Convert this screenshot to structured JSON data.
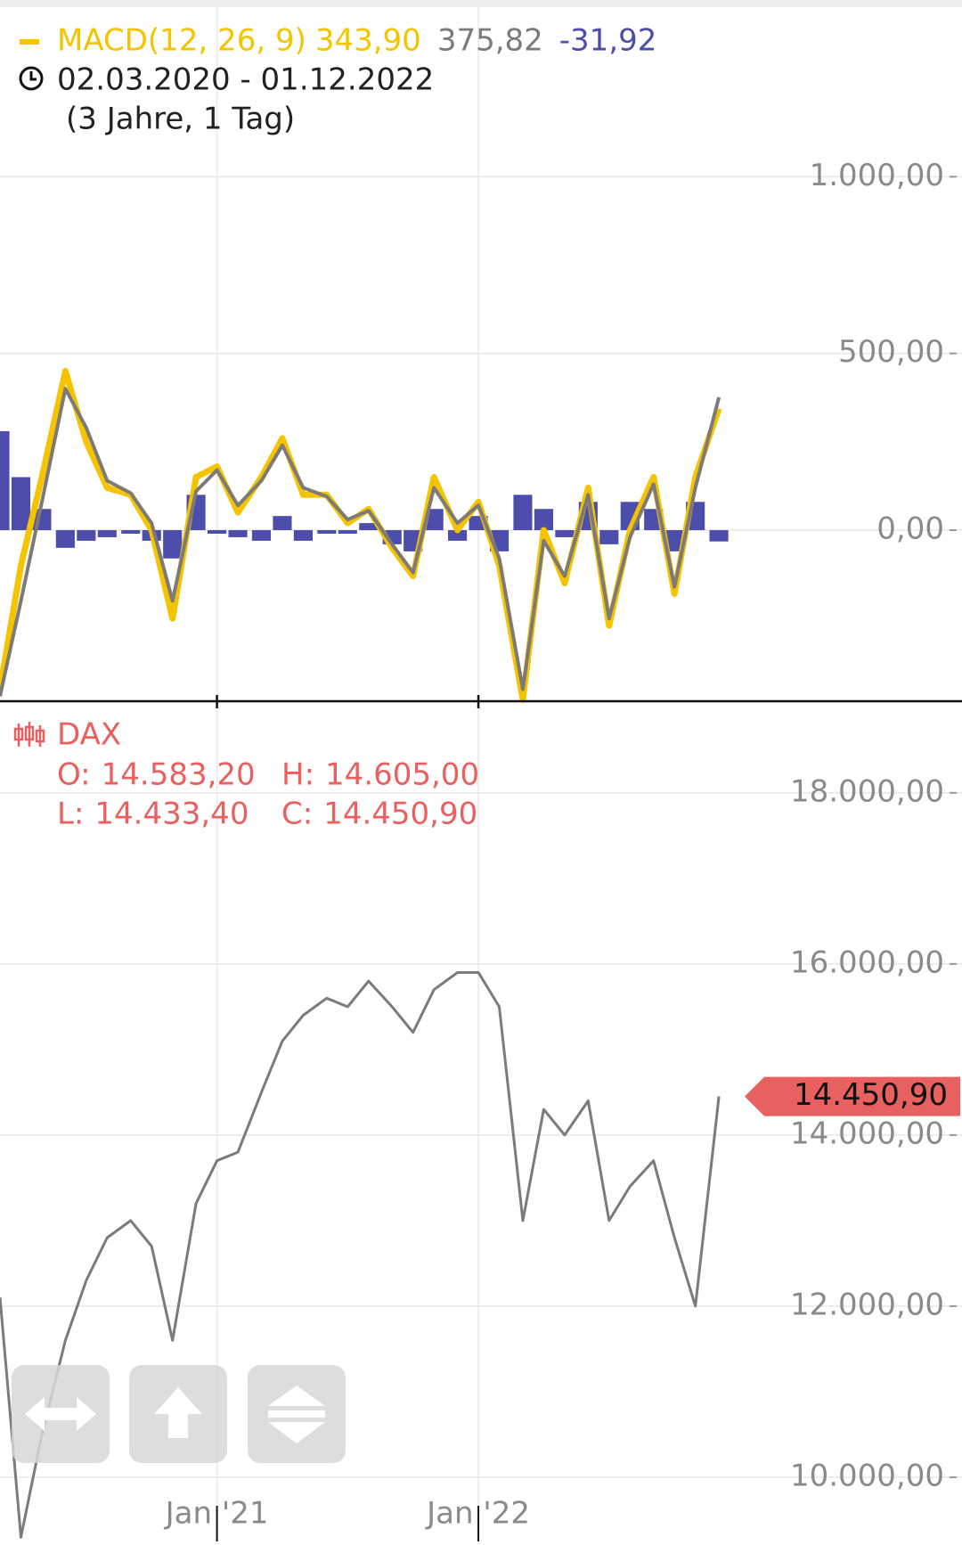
{
  "chart_data": [
    {
      "type": "macd",
      "legend_title": "MACD(12, 26, 9)",
      "date_range": "02.03.2020 - 01.12.2022",
      "period": "(3 Jahre, 1 Tag)",
      "x": [
        2020.17,
        2020.25,
        2020.33,
        2020.42,
        2020.5,
        2020.58,
        2020.67,
        2020.75,
        2020.83,
        2020.92,
        2021.0,
        2021.08,
        2021.17,
        2021.25,
        2021.33,
        2021.42,
        2021.5,
        2021.58,
        2021.67,
        2021.75,
        2021.83,
        2021.92,
        2022.0,
        2022.08,
        2022.17,
        2022.25,
        2022.33,
        2022.42,
        2022.5,
        2022.58,
        2022.67,
        2022.75,
        2022.83,
        2022.92
      ],
      "xlim": [
        2020.17,
        2023.85
      ],
      "ylim": [
        -484,
        1500
      ],
      "yticks": [
        {
          "value": 0,
          "label": "0,00"
        },
        {
          "value": 500,
          "label": "500,00"
        },
        {
          "value": 1000,
          "label": "1.000,00"
        }
      ],
      "grid": true,
      "series": [
        {
          "color": "#f5c400",
          "kind": "line",
          "readout": {
            "value": 343.9,
            "label": "343,90"
          },
          "values": [
            -450,
            -100,
            150,
            450,
            250,
            120,
            100,
            0,
            -250,
            150,
            180,
            50,
            150,
            260,
            100,
            100,
            20,
            60,
            -50,
            -130,
            150,
            0,
            80,
            -100,
            -480,
            0,
            -150,
            120,
            -270,
            0,
            150,
            -180,
            150,
            343.9
          ]
        },
        {
          "color": "#7d7a78",
          "kind": "line",
          "readout": {
            "value": 375.82,
            "label": "375,82"
          },
          "values": [
            -470,
            -200,
            80,
            400,
            290,
            140,
            105,
            20,
            -200,
            110,
            170,
            70,
            140,
            240,
            120,
            95,
            30,
            55,
            -40,
            -120,
            120,
            20,
            70,
            -80,
            -450,
            -30,
            -130,
            100,
            -250,
            -20,
            130,
            -160,
            120,
            375.82
          ]
        },
        {
          "color": "#4d4dab",
          "kind": "bar",
          "readout": {
            "value": -31.92,
            "label": "-31,92"
          },
          "values": [
            280,
            150,
            60,
            -50,
            -30,
            -20,
            -10,
            -30,
            -80,
            100,
            -10,
            -20,
            -30,
            40,
            -30,
            -10,
            -10,
            20,
            -40,
            -60,
            60,
            -30,
            40,
            -60,
            100,
            60,
            -20,
            80,
            -40,
            80,
            60,
            -60,
            80,
            -31.92
          ]
        }
      ]
    },
    {
      "type": "line",
      "name": "DAX",
      "color": "#e86060",
      "ohlc": [
        {
          "key": "O:",
          "value": 14583.2,
          "label": "14.583,20"
        },
        {
          "key": "H:",
          "value": 14605.0,
          "label": "14.605,00"
        },
        {
          "key": "L:",
          "value": 14433.4,
          "label": "14.433,40"
        },
        {
          "key": "C:",
          "value": 14450.9,
          "label": "14.450,90"
        }
      ],
      "last_price": {
        "value": 14450.9,
        "label": "14.450,90"
      },
      "x": [
        2020.17,
        2020.25,
        2020.33,
        2020.42,
        2020.5,
        2020.58,
        2020.67,
        2020.75,
        2020.83,
        2020.92,
        2021.0,
        2021.08,
        2021.17,
        2021.25,
        2021.33,
        2021.42,
        2021.5,
        2021.58,
        2021.67,
        2021.75,
        2021.83,
        2021.92,
        2022.0,
        2022.08,
        2022.17,
        2022.25,
        2022.33,
        2022.42,
        2022.5,
        2022.58,
        2022.67,
        2022.75,
        2022.83,
        2022.92
      ],
      "xlim": [
        2020.17,
        2023.85
      ],
      "xticks": [
        {
          "value": 2021,
          "label": "Jan '21"
        },
        {
          "value": 2022,
          "label": "Jan '22"
        }
      ],
      "ylim": [
        9250,
        19050
      ],
      "yticks": [
        {
          "value": 10000,
          "label": "10.000,00"
        },
        {
          "value": 12000,
          "label": "12.000,00"
        },
        {
          "value": 14000,
          "label": "14.000,00"
        },
        {
          "value": 16000,
          "label": "16.000,00"
        },
        {
          "value": 18000,
          "label": "18.000,00"
        }
      ],
      "grid": true,
      "series": [
        {
          "color": "#7d7a78",
          "values": [
            12100,
            9300,
            10500,
            11600,
            12300,
            12800,
            13000,
            12700,
            11600,
            13200,
            13700,
            13800,
            14500,
            15100,
            15400,
            15600,
            15500,
            15800,
            15500,
            15200,
            15700,
            15900,
            15900,
            15500,
            13000,
            14300,
            14000,
            14400,
            13000,
            13400,
            13700,
            12800,
            12000,
            14450.9
          ]
        }
      ]
    }
  ]
}
